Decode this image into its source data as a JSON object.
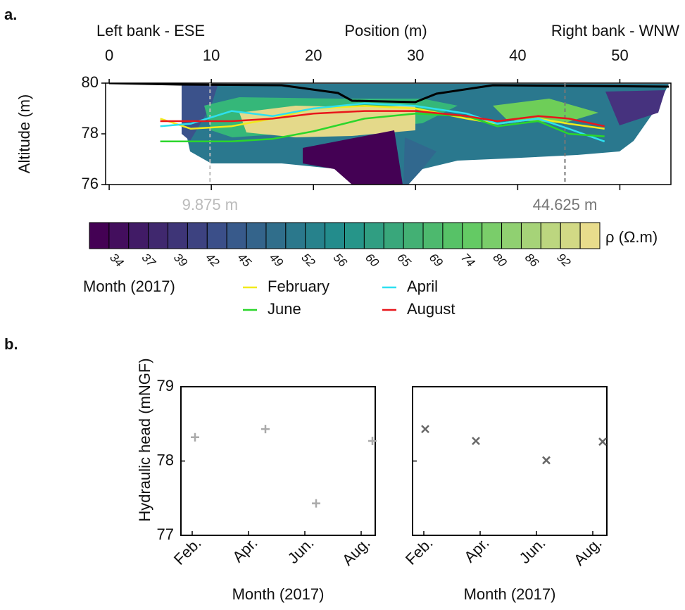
{
  "chart_data": [
    {
      "type": "section",
      "label": "a.",
      "left_label": "Left bank - ESE",
      "xlabel": "Position (m)",
      "right_label": "Right bank - WNW",
      "ylabel": "Altitude (m)",
      "xlim": [
        -0.35,
        55
      ],
      "xticks": [
        0,
        10,
        20,
        30,
        40,
        50
      ],
      "ylim": [
        76,
        80
      ],
      "yticks": [
        76,
        78,
        80
      ],
      "annotations": [
        {
          "value": 9.875,
          "label": "9.875 m",
          "color": "#bbbbbb"
        },
        {
          "value": 44.625,
          "label": "44.625 m",
          "color": "#777777"
        }
      ],
      "colorbar": {
        "label": "ρ (Ω.m)",
        "ticks": [
          34,
          37,
          39,
          42,
          45,
          49,
          52,
          56,
          60,
          65,
          69,
          74,
          80,
          86,
          92
        ]
      },
      "legend_title": "Month (2017)",
      "x": [
        5,
        8,
        12,
        16,
        20,
        25,
        30,
        35,
        38,
        42,
        45,
        48.5
      ],
      "series": [
        {
          "name": "February",
          "color": "#f2ea1c",
          "values": [
            78.6,
            78.2,
            78.3,
            78.6,
            79.0,
            79.1,
            79.0,
            78.6,
            78.4,
            78.6,
            78.4,
            78.2
          ]
        },
        {
          "name": "April",
          "color": "#2ee0f0",
          "values": [
            78.3,
            78.4,
            78.9,
            78.7,
            79.0,
            79.2,
            79.1,
            78.8,
            78.4,
            78.6,
            78.2,
            77.7
          ]
        },
        {
          "name": "June",
          "color": "#2bd62b",
          "values": [
            77.7,
            77.7,
            77.7,
            77.8,
            78.1,
            78.6,
            78.8,
            78.7,
            78.3,
            78.5,
            78.0,
            77.9
          ]
        },
        {
          "name": "August",
          "color": "#e8161b",
          "values": [
            78.5,
            78.5,
            78.5,
            78.6,
            78.8,
            78.9,
            78.9,
            78.7,
            78.5,
            78.7,
            78.6,
            78.3
          ]
        }
      ]
    },
    {
      "type": "scatter",
      "label": "b.",
      "ylabel": "Hydraulic head (mNGF)",
      "xlabel": "Month (2017)",
      "marker": "plus",
      "color": "#aaaaaa",
      "xlim": [
        1.6,
        8.5
      ],
      "xticks": [
        {
          "value": 2,
          "label": "Feb."
        },
        {
          "value": 4,
          "label": "Apr."
        },
        {
          "value": 6,
          "label": "Jun."
        },
        {
          "value": 8,
          "label": "Aug."
        }
      ],
      "ylim": [
        77,
        79
      ],
      "yticks": [
        77,
        78,
        79
      ],
      "x": [
        2.1,
        4.6,
        6.4,
        8.4
      ],
      "values": [
        78.32,
        78.43,
        77.43,
        78.27
      ]
    },
    {
      "type": "scatter",
      "xlabel": "Month (2017)",
      "marker": "x",
      "color": "#666666",
      "xlim": [
        1.6,
        8.5
      ],
      "xticks": [
        {
          "value": 2,
          "label": "Feb."
        },
        {
          "value": 4,
          "label": "Apr."
        },
        {
          "value": 6,
          "label": "Jun."
        },
        {
          "value": 8,
          "label": "Aug."
        }
      ],
      "ylim": [
        77,
        79
      ],
      "yticks": [
        77,
        78,
        79
      ],
      "x": [
        2.05,
        3.85,
        6.35,
        8.35
      ],
      "values": [
        78.43,
        78.27,
        78.01,
        78.26
      ]
    }
  ]
}
